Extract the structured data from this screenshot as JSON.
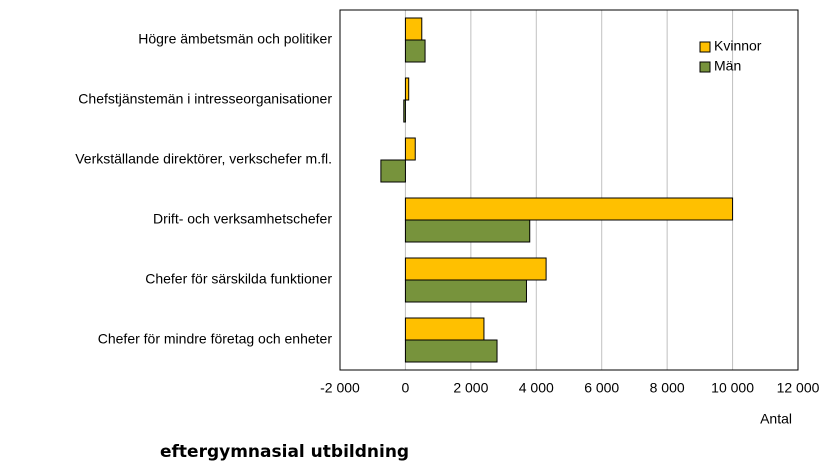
{
  "chart_data": {
    "type": "bar",
    "orientation": "horizontal",
    "categories": [
      "Högre ämbetsmän och politiker",
      "Chefstjänstemän i intresseorganisationer",
      "Verkställande direktörer, verkschefer m.fl.",
      "Drift- och verksamhetschefer",
      "Chefer för särskilda funktioner",
      "Chefer för mindre företag och enheter"
    ],
    "series": [
      {
        "name": "Kvinnor",
        "color": "#ffc000",
        "values": [
          500,
          100,
          300,
          10000,
          4300,
          2400
        ]
      },
      {
        "name": "Män",
        "color": "#77933c",
        "values": [
          600,
          -50,
          -750,
          3800,
          3700,
          2800
        ]
      }
    ],
    "xlim": [
      -2000,
      12000
    ],
    "xticks": [
      {
        "value": -2000,
        "label": "-2 000"
      },
      0,
      {
        "value": 2000,
        "label": "2 000"
      },
      {
        "value": 4000,
        "label": "4 000"
      },
      {
        "value": 6000,
        "label": "6 000"
      },
      {
        "value": 8000,
        "label": "8 000"
      },
      {
        "value": 10000,
        "label": "10 000"
      },
      {
        "value": 12000,
        "label": "12 000"
      }
    ],
    "x_label": "Antal",
    "caption": "eftergymnasial utbildning",
    "grid": true,
    "legend": "upper right"
  }
}
